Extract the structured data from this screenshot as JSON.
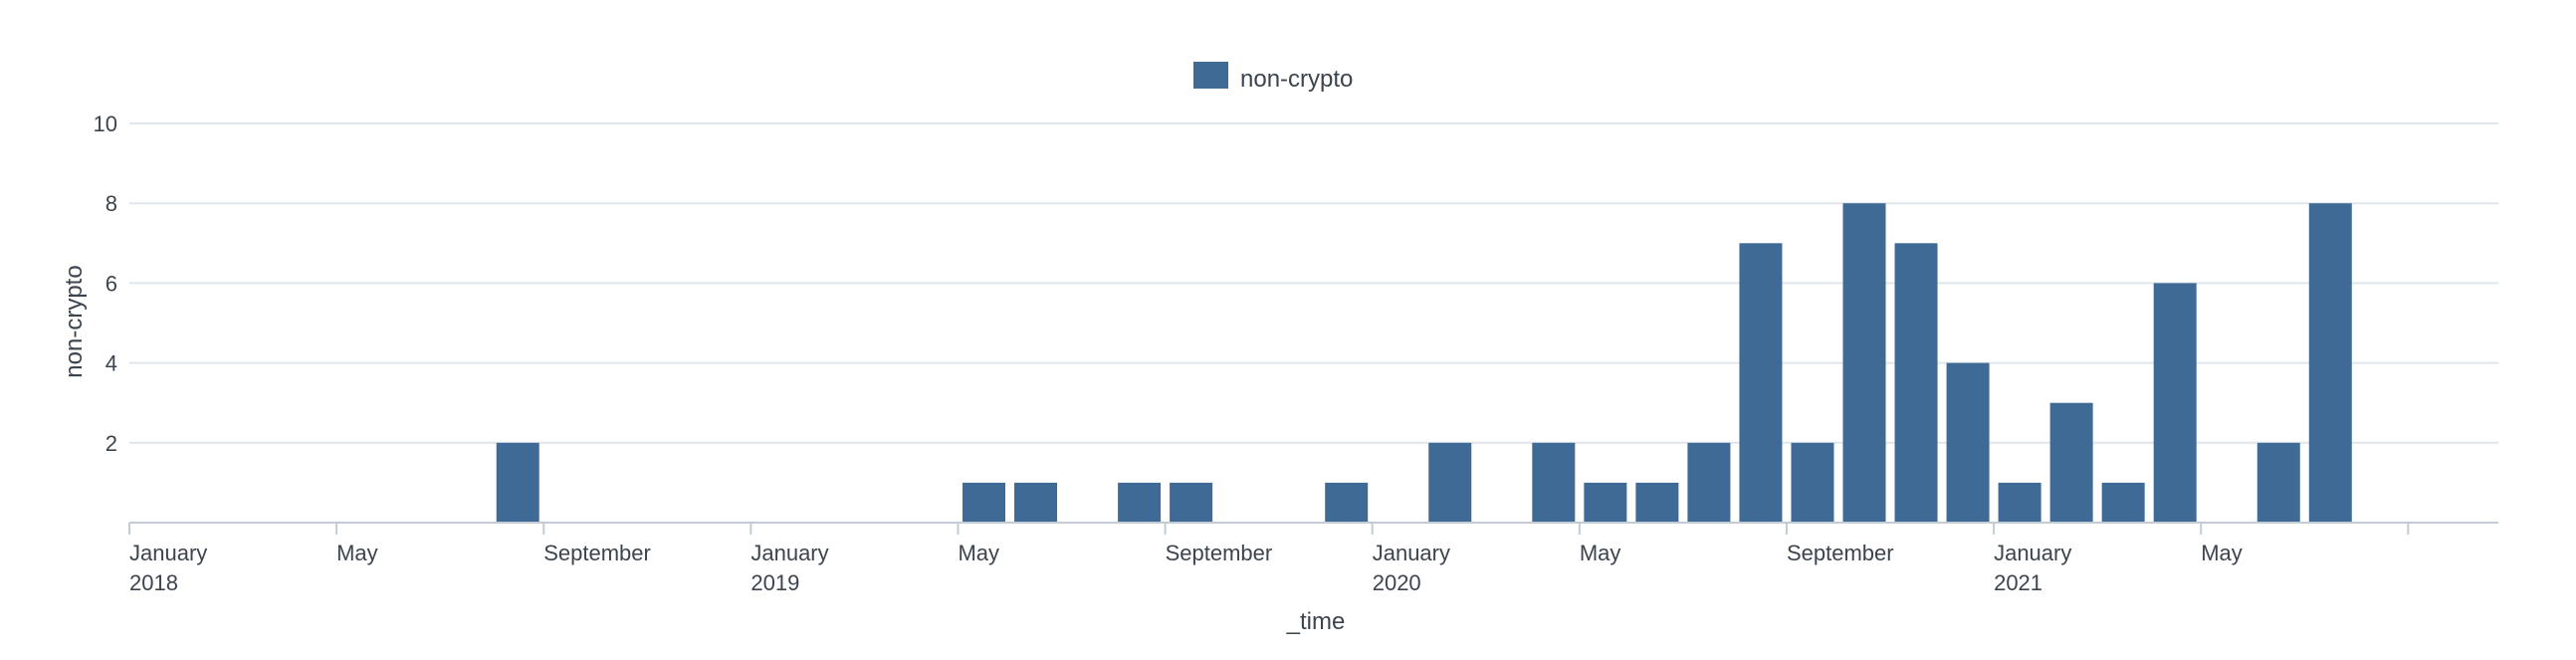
{
  "chart_data": {
    "type": "bar",
    "legend": {
      "label": "non-crypto",
      "placement": "top-center"
    },
    "xlabel": "_time",
    "ylabel": "non-crypto",
    "ylim": [
      0,
      10
    ],
    "yticks": [
      2,
      4,
      6,
      8,
      10
    ],
    "grid": true,
    "x_ticks": [
      {
        "date": "2018-01",
        "line1": "January",
        "line2": "2018"
      },
      {
        "date": "2018-05",
        "line1": "May",
        "line2": ""
      },
      {
        "date": "2018-09",
        "line1": "September",
        "line2": ""
      },
      {
        "date": "2019-01",
        "line1": "January",
        "line2": "2019"
      },
      {
        "date": "2019-05",
        "line1": "May",
        "line2": ""
      },
      {
        "date": "2019-09",
        "line1": "September",
        "line2": ""
      },
      {
        "date": "2020-01",
        "line1": "January",
        "line2": "2020"
      },
      {
        "date": "2020-05",
        "line1": "May",
        "line2": ""
      },
      {
        "date": "2020-09",
        "line1": "September",
        "line2": ""
      },
      {
        "date": "2021-01",
        "line1": "January",
        "line2": "2021"
      },
      {
        "date": "2021-05",
        "line1": "May",
        "line2": ""
      },
      {
        "date": "2021-09",
        "line1": "",
        "line2": ""
      }
    ],
    "categories": [
      "2018-08",
      "2019-05",
      "2019-06",
      "2019-08",
      "2019-09",
      "2019-12",
      "2020-02",
      "2020-04",
      "2020-05",
      "2020-06",
      "2020-07",
      "2020-08",
      "2020-09",
      "2020-10",
      "2020-11",
      "2020-12",
      "2021-01",
      "2021-02",
      "2021-03",
      "2021-04",
      "2021-06",
      "2021-07"
    ],
    "series": [
      {
        "name": "non-crypto",
        "color": "#3f6a96",
        "values": [
          2,
          1,
          1,
          1,
          1,
          1,
          2,
          2,
          1,
          1,
          2,
          7,
          2,
          8,
          7,
          4,
          1,
          3,
          1,
          6,
          2,
          8
        ]
      }
    ]
  }
}
